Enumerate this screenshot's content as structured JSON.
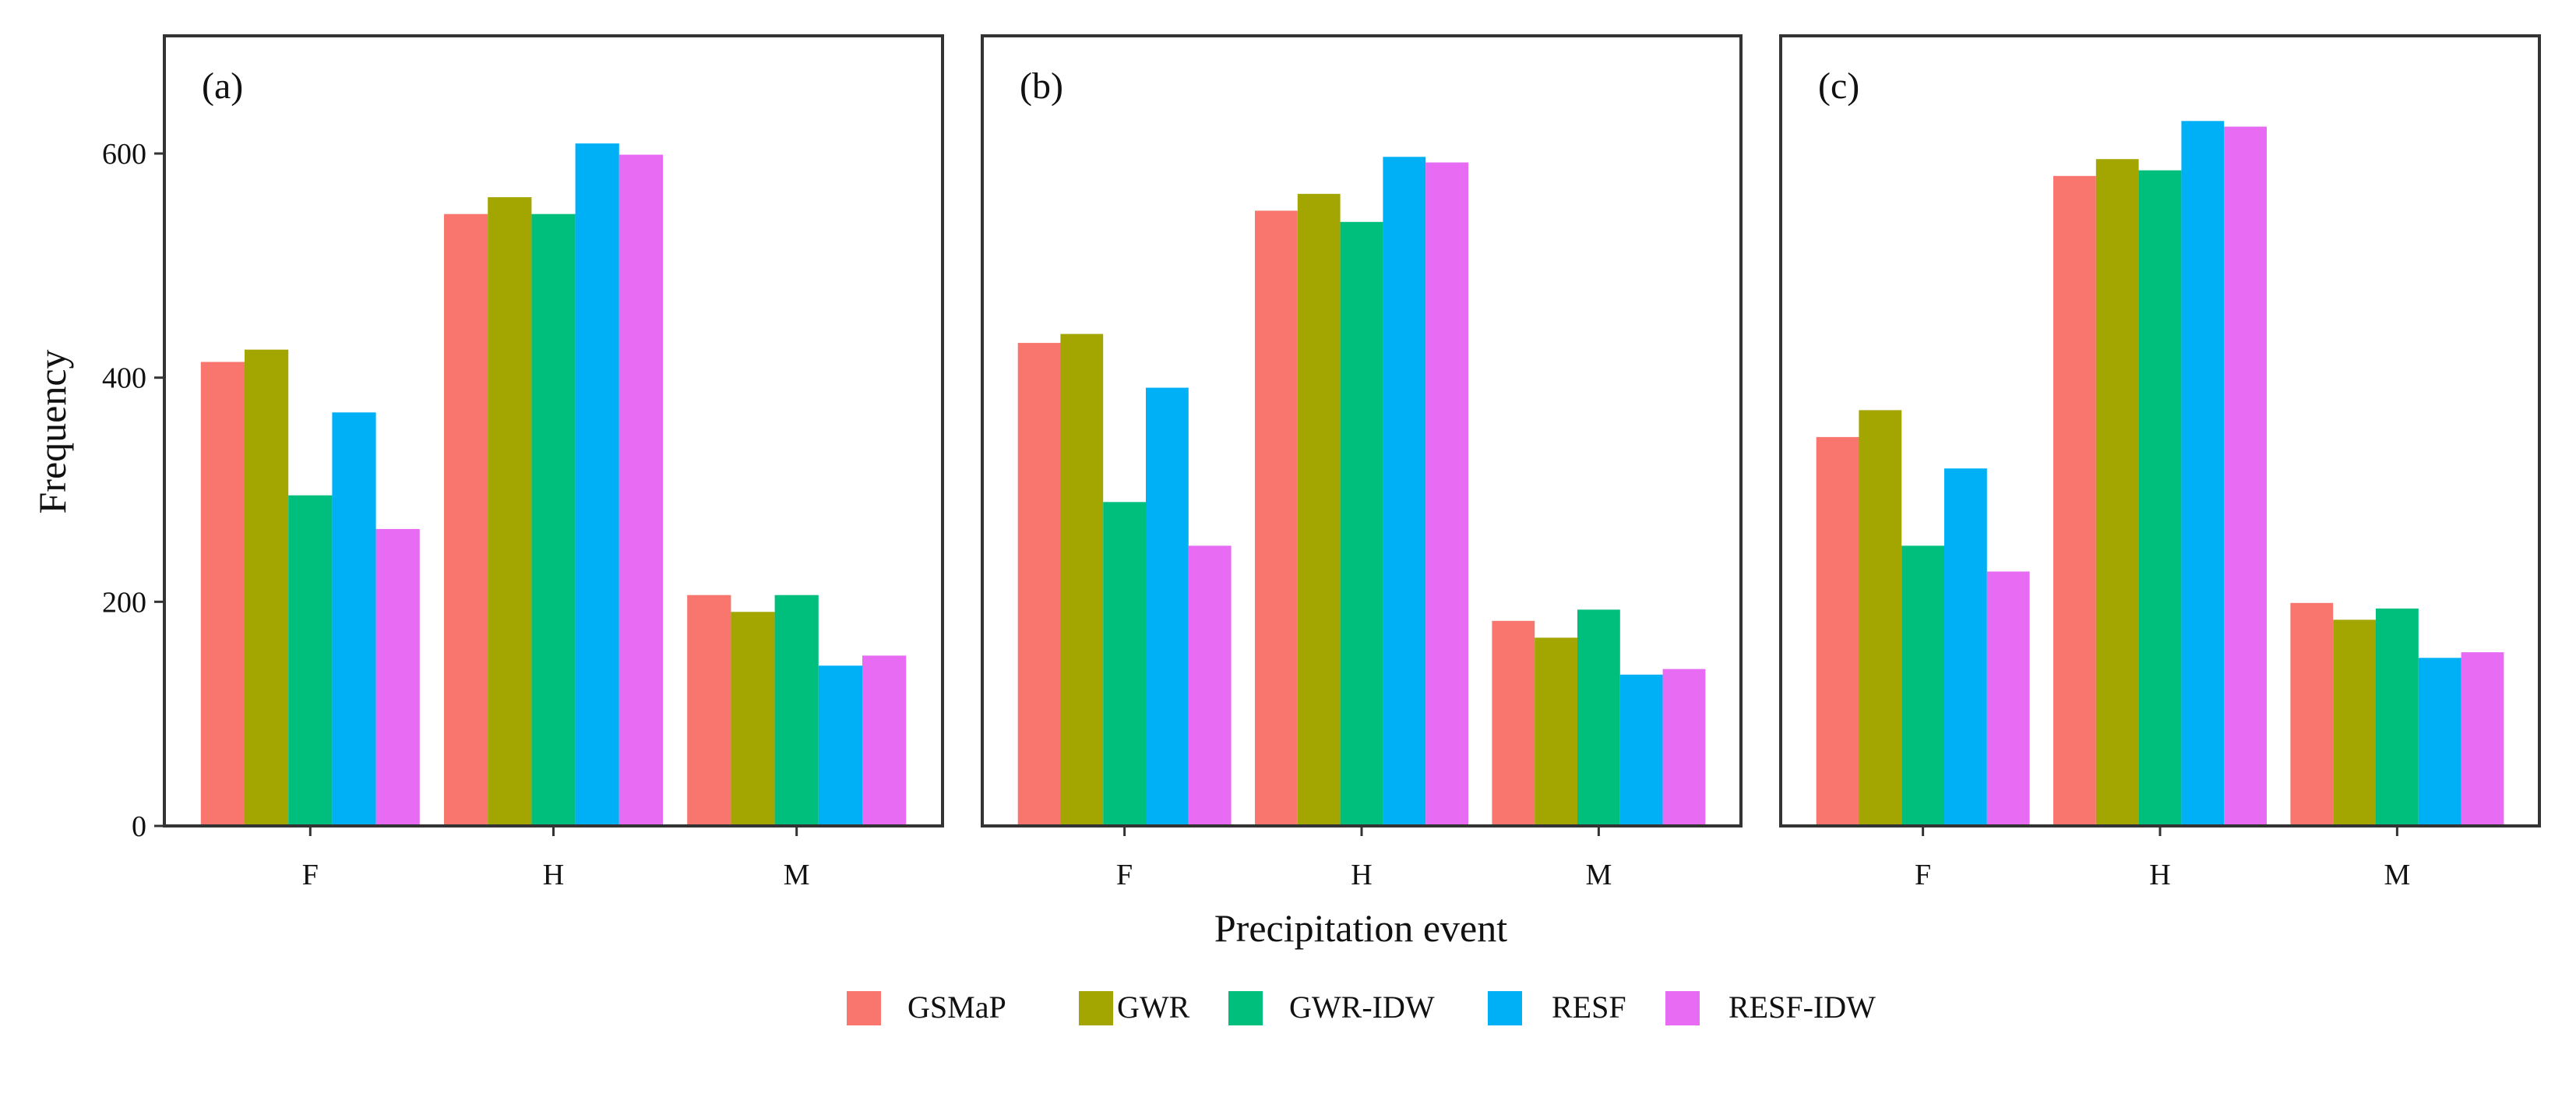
{
  "chart_data": {
    "type": "bar",
    "xlabel": "Precipitation event",
    "ylabel": "Frequency",
    "ylim": [
      0,
      705
    ],
    "yticks": [
      0,
      200,
      400,
      600
    ],
    "categories": [
      "F",
      "H",
      "M"
    ],
    "legend_position": "bottom",
    "colors": {
      "GSMaP": "#F8766D",
      "GWR": "#A3A500",
      "GWR-IDW": "#00BF7D",
      "RESF": "#00B0F6",
      "RESF-IDW": "#E76BF3"
    },
    "panels": [
      {
        "label": "(a)",
        "series": [
          {
            "name": "GSMaP",
            "values": [
              414,
              546,
              206
            ]
          },
          {
            "name": "GWR",
            "values": [
              425,
              561,
              191
            ]
          },
          {
            "name": "GWR-IDW",
            "values": [
              295,
              546,
              206
            ]
          },
          {
            "name": "RESF",
            "values": [
              369,
              609,
              143
            ]
          },
          {
            "name": "RESF-IDW",
            "values": [
              265,
              599,
              152
            ]
          }
        ]
      },
      {
        "label": "(b)",
        "series": [
          {
            "name": "GSMaP",
            "values": [
              431,
              549,
              183
            ]
          },
          {
            "name": "GWR",
            "values": [
              439,
              564,
              168
            ]
          },
          {
            "name": "GWR-IDW",
            "values": [
              289,
              539,
              193
            ]
          },
          {
            "name": "RESF",
            "values": [
              391,
              597,
              135
            ]
          },
          {
            "name": "RESF-IDW",
            "values": [
              250,
              592,
              140
            ]
          }
        ]
      },
      {
        "label": "(c)",
        "series": [
          {
            "name": "GSMaP",
            "values": [
              347,
              580,
              199
            ]
          },
          {
            "name": "GWR",
            "values": [
              371,
              595,
              184
            ]
          },
          {
            "name": "GWR-IDW",
            "values": [
              250,
              585,
              194
            ]
          },
          {
            "name": "RESF",
            "values": [
              319,
              629,
              150
            ]
          },
          {
            "name": "RESF-IDW",
            "values": [
              227,
              624,
              155
            ]
          }
        ]
      }
    ]
  }
}
